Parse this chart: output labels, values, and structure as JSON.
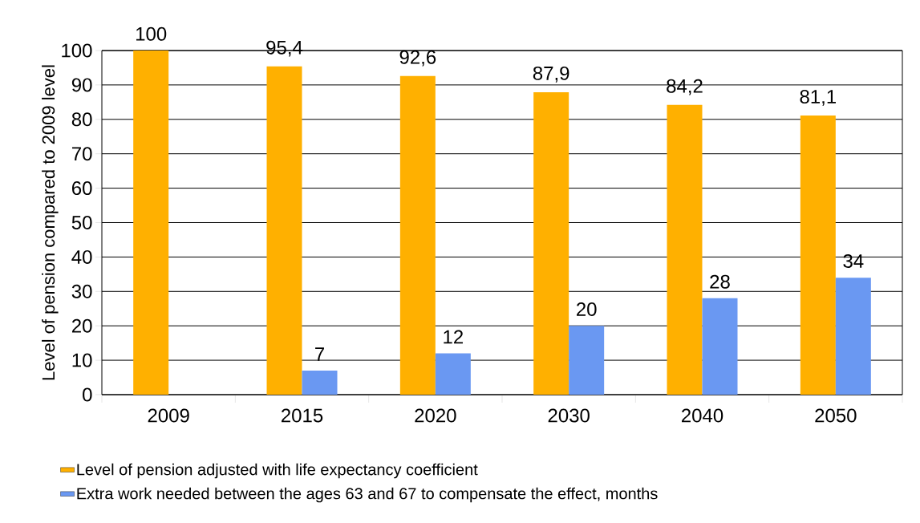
{
  "chart_data": {
    "type": "bar",
    "ylabel": "Level of pension compared to 2009 level",
    "categories": [
      "2009",
      "2015",
      "2020",
      "2030",
      "2040",
      "2050"
    ],
    "series": [
      {
        "name": "Level of pension adjusted with life expectancy coefficient",
        "color": "#ffb000",
        "values": [
          100,
          95.4,
          92.6,
          87.9,
          84.2,
          81.1
        ],
        "value_labels": [
          "100",
          "95,4",
          "92,6",
          "87,9",
          "84,2",
          "81,1"
        ]
      },
      {
        "name": "Extra work needed between the ages 63 and 67 to compensate the effect, months",
        "color": "#6a98f2",
        "values": [
          null,
          7,
          12,
          20,
          28,
          34
        ],
        "value_labels": [
          null,
          "7",
          "12",
          "20",
          "28",
          "34"
        ]
      }
    ],
    "ylim": [
      0,
      100
    ],
    "yticks": [
      0,
      10,
      20,
      30,
      40,
      50,
      60,
      70,
      80,
      90,
      100
    ],
    "grid": "y",
    "legend": "bottom"
  }
}
